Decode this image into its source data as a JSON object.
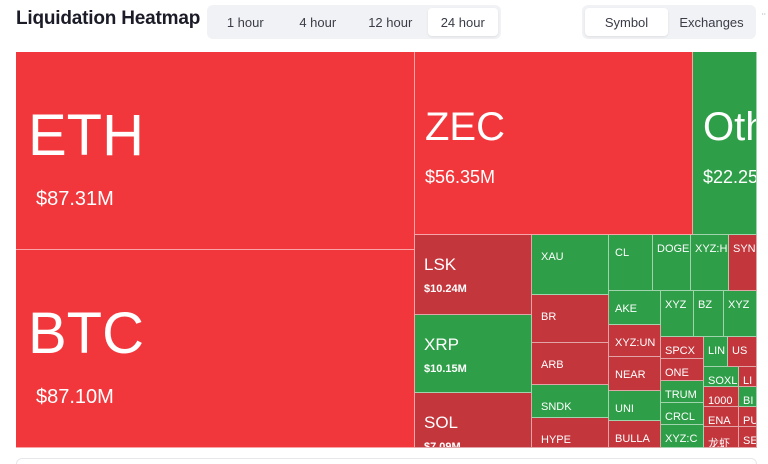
{
  "header": {
    "title": "Liquidation Heatmap",
    "time_tabs": [
      {
        "label": "1 hour",
        "active": false
      },
      {
        "label": "4 hour",
        "active": false
      },
      {
        "label": "12 hour",
        "active": false
      },
      {
        "label": "24 hour",
        "active": true
      }
    ],
    "group_tabs": [
      {
        "label": "Symbol",
        "active": true
      },
      {
        "label": "Exchanges",
        "active": false
      }
    ],
    "edge_mark": "¨"
  },
  "colors": {
    "bright_red": "#f2373c",
    "dark_red": "#c2363c",
    "green": "#2e9f48"
  },
  "tiles": [
    {
      "symbol": "ETH",
      "value": "$87.31M",
      "color": "red"
    },
    {
      "symbol": "BTC",
      "value": "$87.10M",
      "color": "red"
    },
    {
      "symbol": "ZEC",
      "value": "$56.35M",
      "color": "red"
    },
    {
      "symbol": "Oth",
      "value": "$22.25",
      "color": "green"
    },
    {
      "symbol": "LSK",
      "value": "$10.24M",
      "color": "dred"
    },
    {
      "symbol": "XRP",
      "value": "$10.15M",
      "color": "green"
    },
    {
      "symbol": "SOL",
      "value": "$7.09M",
      "color": "dred"
    },
    {
      "symbol": "XAU",
      "color": "green"
    },
    {
      "symbol": "BR",
      "color": "dred"
    },
    {
      "symbol": "ARB",
      "color": "dred"
    },
    {
      "symbol": "SNDK",
      "color": "green"
    },
    {
      "symbol": "HYPE",
      "color": "dred"
    },
    {
      "symbol": "CL",
      "color": "green"
    },
    {
      "symbol": "DOGE",
      "color": "green"
    },
    {
      "symbol": "XYZ:H",
      "color": "green"
    },
    {
      "symbol": "SYN",
      "color": "dred"
    },
    {
      "symbol": "AKE",
      "color": "green"
    },
    {
      "symbol": "XYZ:UN",
      "color": "dred"
    },
    {
      "symbol": "NEAR",
      "color": "dred"
    },
    {
      "symbol": "UNI",
      "color": "green"
    },
    {
      "symbol": "BULLA",
      "color": "dred"
    },
    {
      "symbol": "XYZ",
      "color": "green"
    },
    {
      "symbol": "BZ",
      "color": "green"
    },
    {
      "symbol": "XYZ",
      "color": "green"
    },
    {
      "symbol": "SPCX",
      "color": "dred"
    },
    {
      "symbol": "ONE",
      "color": "dred"
    },
    {
      "symbol": "TRUM",
      "color": "green"
    },
    {
      "symbol": "CRCL",
      "color": "green"
    },
    {
      "symbol": "XYZ:C",
      "color": "green"
    },
    {
      "symbol": "LIN",
      "color": "green"
    },
    {
      "symbol": "US",
      "color": "dred"
    },
    {
      "symbol": "SOXL",
      "color": "green"
    },
    {
      "symbol": "LI",
      "color": "dred"
    },
    {
      "symbol": "1000",
      "color": "dred"
    },
    {
      "symbol": "BI",
      "color": "green"
    },
    {
      "symbol": "ENA",
      "color": "dred"
    },
    {
      "symbol": "PU",
      "color": "dred"
    },
    {
      "symbol": "龙虾",
      "color": "dred"
    },
    {
      "symbol": "SE",
      "color": "dred"
    }
  ]
}
